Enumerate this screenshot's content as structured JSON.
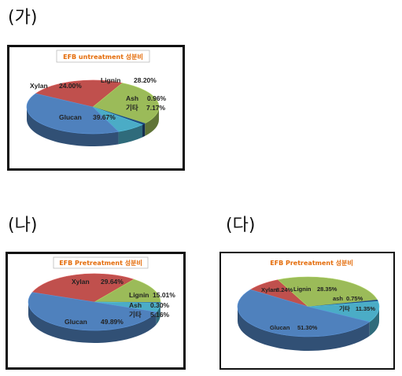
{
  "panels": [
    {
      "label": "(가)"
    },
    {
      "label": "(나)"
    },
    {
      "label": "(다)"
    }
  ],
  "colors": {
    "xylan": "#c0504d",
    "lignin": "#9bbb59",
    "ash": "#4f81bd",
    "gita": "#4bacc6",
    "glucan": "#4f81bd",
    "title_orange": "#e46c0a"
  },
  "chart_data": [
    {
      "type": "pie",
      "title": "EFB untreatment 성분비",
      "slices": [
        {
          "name": "Xylan",
          "value": 24.0,
          "value_label": "24.00%",
          "color": "#c0504d"
        },
        {
          "name": "Lignin",
          "value": 28.2,
          "value_label": "28.20%",
          "color": "#9bbb59"
        },
        {
          "name": "Ash",
          "value": 0.96,
          "value_label": "0.96%",
          "color": "#1f497d"
        },
        {
          "name": "기타",
          "value": 7.17,
          "value_label": "7.17%",
          "color": "#4bacc6"
        },
        {
          "name": "Glucan",
          "value": 39.67,
          "value_label": "39.67%",
          "color": "#4f81bd"
        }
      ]
    },
    {
      "type": "pie",
      "title": "EFB Pretreatment 성분비",
      "slices": [
        {
          "name": "Xylan",
          "value": 29.64,
          "value_label": "29.64%",
          "color": "#c0504d"
        },
        {
          "name": "Lignin",
          "value": 15.01,
          "value_label": "15.01%",
          "color": "#9bbb59"
        },
        {
          "name": "Ash",
          "value": 0.3,
          "value_label": "0.30%",
          "color": "#1f497d"
        },
        {
          "name": "기타",
          "value": 5.16,
          "value_label": "5.16%",
          "color": "#4bacc6"
        },
        {
          "name": "Glucan",
          "value": 49.89,
          "value_label": "49.89%",
          "color": "#4f81bd"
        }
      ]
    },
    {
      "type": "pie",
      "title": "EFB Pretreatment 성분비",
      "slices": [
        {
          "name": "Xylan",
          "value": 8.24,
          "value_label": "8.24%",
          "color": "#c0504d"
        },
        {
          "name": "Lignin",
          "value": 28.35,
          "value_label": "28.35%",
          "color": "#9bbb59"
        },
        {
          "name": "ash",
          "value": 0.75,
          "value_label": "0.75%",
          "color": "#1f497d"
        },
        {
          "name": "기타",
          "value": 11.35,
          "value_label": "11.35%",
          "color": "#4bacc6"
        },
        {
          "name": "Glucan",
          "value": 51.3,
          "value_label": "51.30%",
          "color": "#4f81bd"
        }
      ]
    }
  ]
}
